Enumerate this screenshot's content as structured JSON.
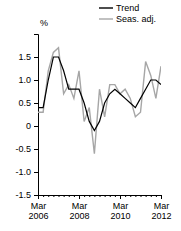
{
  "chart_data": {
    "type": "line",
    "y_label": "%",
    "categories": [
      "Mar 2006",
      null,
      null,
      null,
      null,
      null,
      null,
      null,
      "Mar 2008",
      null,
      null,
      null,
      null,
      null,
      null,
      null,
      "Mar 2010",
      null,
      null,
      null,
      null,
      null,
      null,
      null,
      "Mar 2012"
    ],
    "series": [
      {
        "name": "Trend",
        "color": "#000000",
        "values": [
          0.4,
          0.4,
          1.0,
          1.5,
          1.5,
          1.2,
          0.8,
          0.8,
          0.8,
          0.5,
          0.1,
          -0.1,
          0.1,
          0.5,
          0.7,
          0.8,
          0.7,
          0.6,
          0.5,
          0.4,
          0.6,
          0.8,
          1.0,
          1.0,
          0.9
        ]
      },
      {
        "name": "Seas. adj.",
        "color": "#a6a6a6",
        "values": [
          0.3,
          0.3,
          1.2,
          1.6,
          1.7,
          0.7,
          0.9,
          0.6,
          1.2,
          0.1,
          0.4,
          -0.6,
          0.8,
          0.2,
          0.9,
          0.9,
          0.7,
          0.8,
          0.6,
          0.2,
          0.3,
          1.4,
          1.1,
          0.6,
          1.3
        ]
      }
    ],
    "ylim": [
      -1.5,
      2
    ],
    "yticks": [
      {
        "value": -1.5,
        "label": "-1.5"
      },
      {
        "value": -1,
        "label": "-1.0"
      },
      -0.5,
      0,
      0.5,
      {
        "value": 1,
        "label": "1.0"
      },
      1.5
    ],
    "grid": false,
    "legend": "upper right"
  }
}
